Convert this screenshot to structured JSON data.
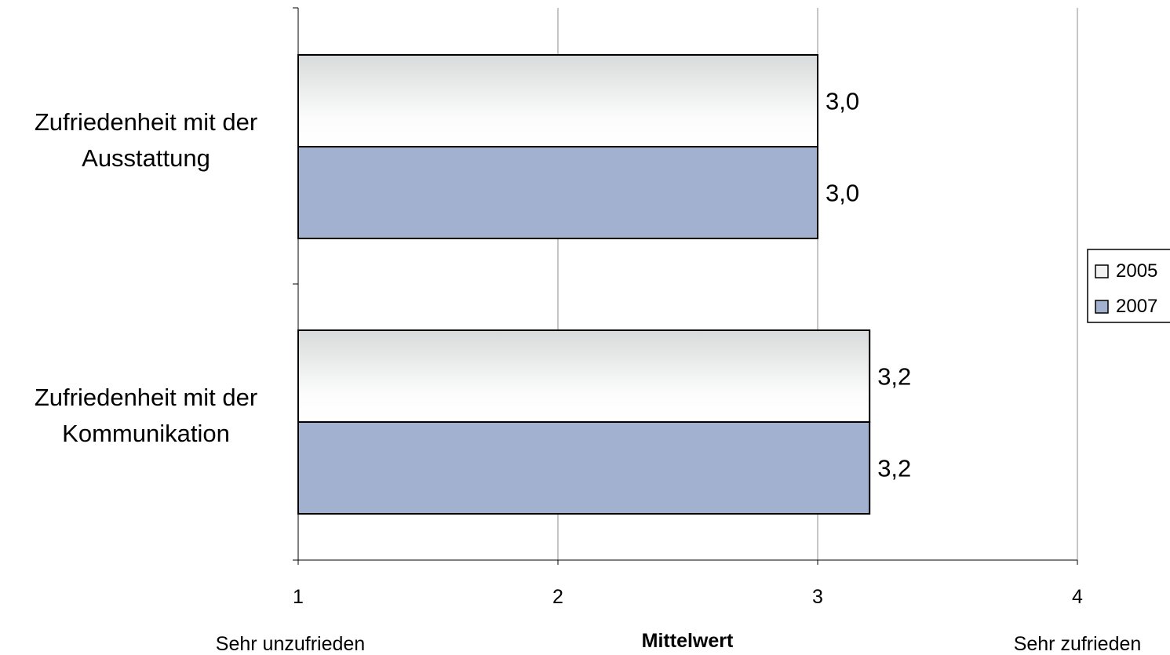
{
  "chart_data": {
    "type": "bar",
    "orientation": "horizontal",
    "categories": [
      "Zufriedenheit mit der Ausstattung",
      "Zufriedenheit mit der Kommunikation"
    ],
    "category_lines": [
      [
        "Zufriedenheit mit der",
        "Ausstattung"
      ],
      [
        "Zufriedenheit mit der",
        "Kommunikation"
      ]
    ],
    "series": [
      {
        "name": "2005",
        "values": [
          3.0,
          3.2
        ],
        "labels": [
          "3,0",
          "3,2"
        ],
        "color": "#f2f2f2"
      },
      {
        "name": "2007",
        "values": [
          3.0,
          3.2
        ],
        "labels": [
          "3,0",
          "3,2"
        ],
        "color": "#a2b1cf"
      }
    ],
    "xlim": [
      1,
      4
    ],
    "xticks": [
      1,
      2,
      3,
      4
    ],
    "xtick_labels": [
      "1",
      "2",
      "3",
      "4"
    ],
    "xlabel": "Mittelwert",
    "xlabel_left": "Sehr unzufrieden",
    "xlabel_right": "Sehr zufrieden",
    "grid": true,
    "legend": {
      "position": "right",
      "entries": [
        "2005",
        "2007"
      ]
    }
  }
}
